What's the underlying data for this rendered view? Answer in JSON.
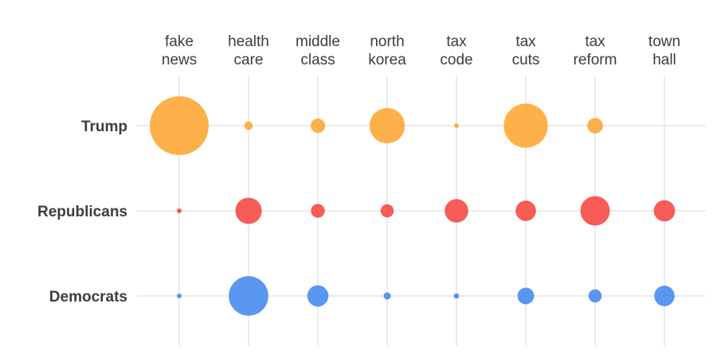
{
  "chart_data": {
    "type": "scatter",
    "subtype": "bubble-matrix",
    "categories": [
      [
        "fake",
        "news"
      ],
      [
        "health",
        "care"
      ],
      [
        "middle",
        "class"
      ],
      [
        "north",
        "korea"
      ],
      [
        "tax",
        "code"
      ],
      [
        "tax",
        "cuts"
      ],
      [
        "tax",
        "reform"
      ],
      [
        "town",
        "hall"
      ]
    ],
    "series": [
      {
        "name": "Trump",
        "color": "#fea32a",
        "values": [
          100,
          2,
          6,
          36,
          0.6,
          56,
          7,
          0
        ]
      },
      {
        "name": "Republicans",
        "color": "#f6403a",
        "values": [
          0.5,
          20,
          5.5,
          5,
          16,
          12,
          25,
          13
        ]
      },
      {
        "name": "Democrats",
        "color": "#3d85ef",
        "values": [
          0.6,
          45,
          13,
          1.5,
          0.8,
          8,
          5,
          12
        ]
      }
    ],
    "grid": true,
    "legend": "none",
    "size_encodes": "value"
  }
}
